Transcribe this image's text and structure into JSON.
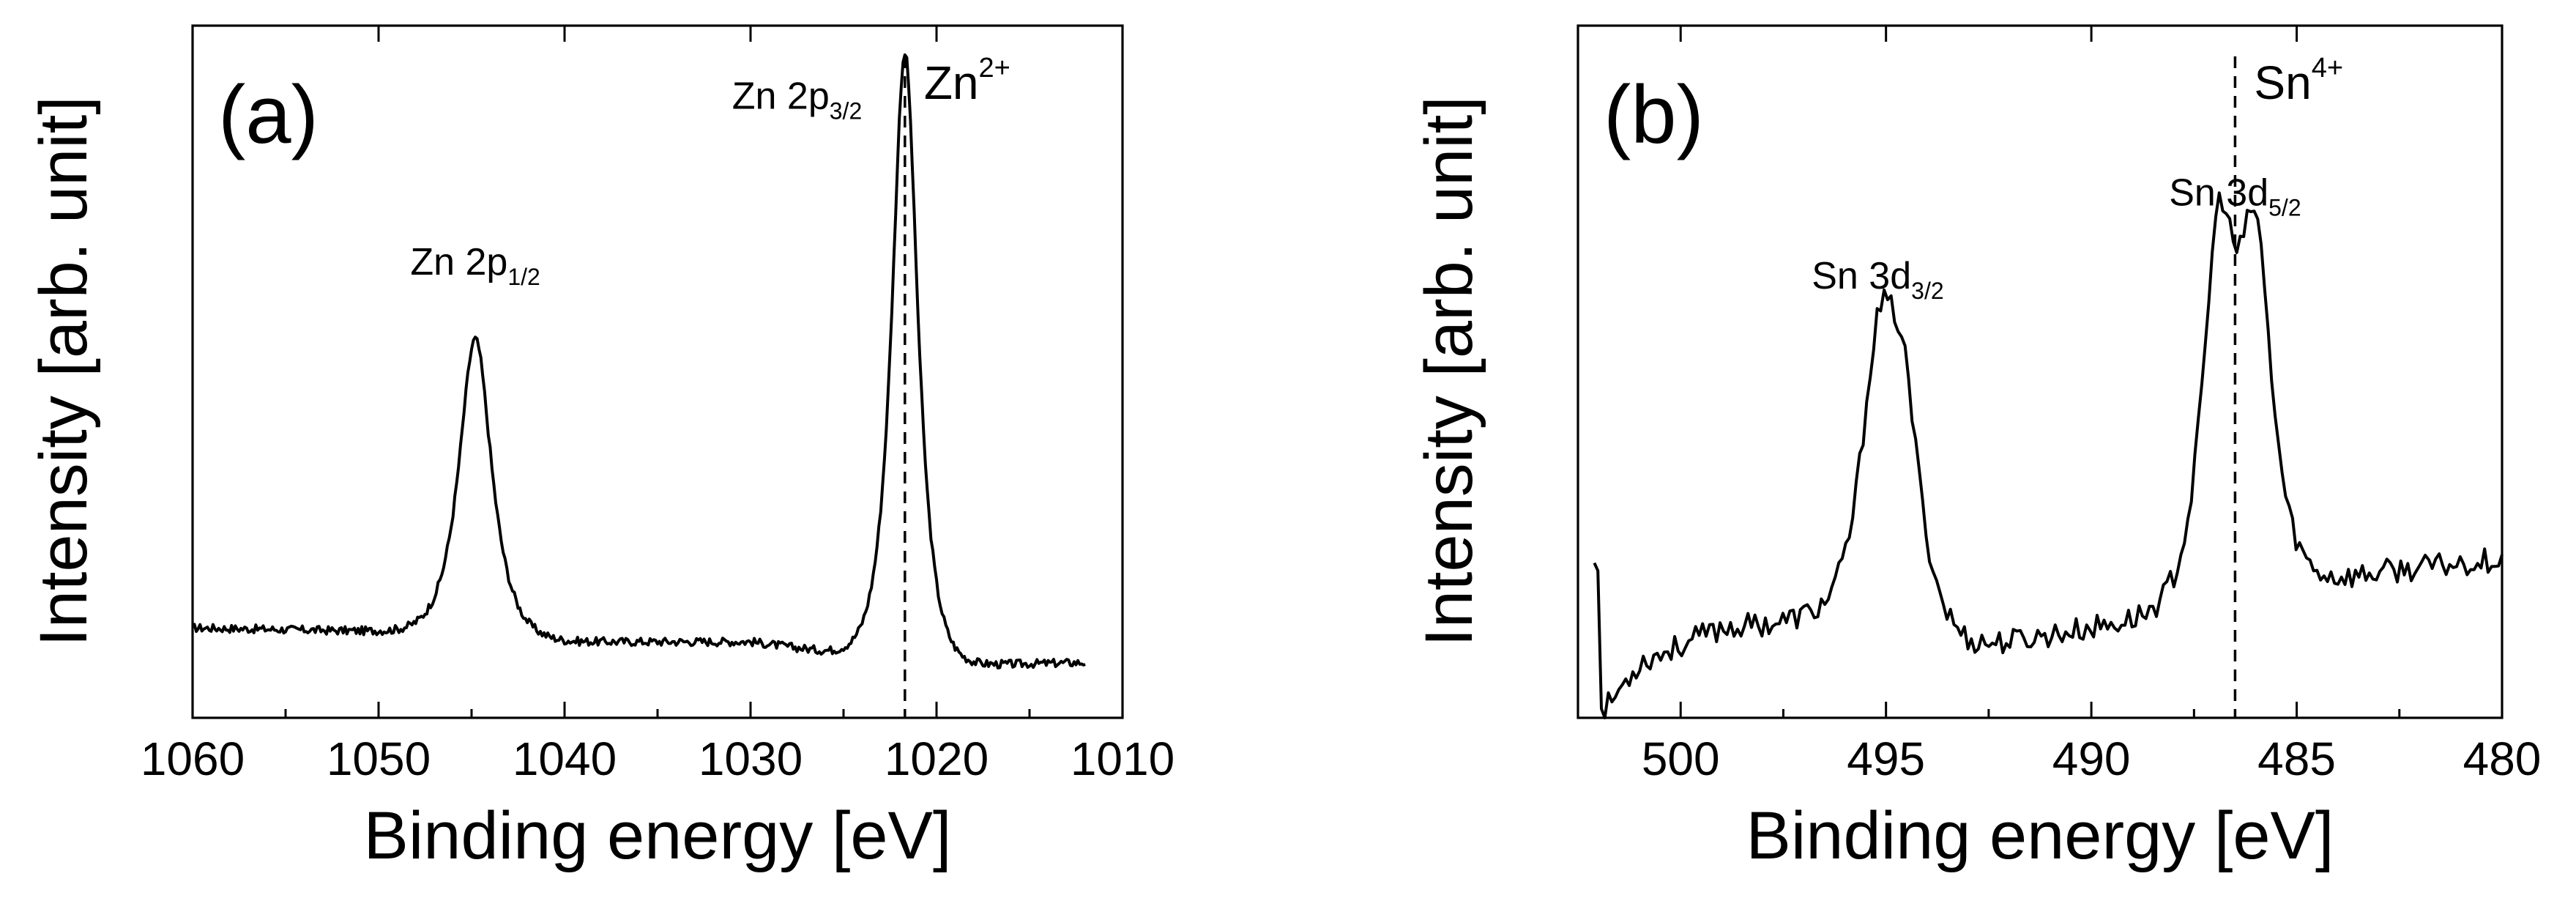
{
  "chart_data": [
    {
      "type": "line",
      "panel": "(a)",
      "xlabel": "Binding energy [eV]",
      "ylabel": "Intensity [arb. unit]",
      "xlim": [
        1060,
        1010
      ],
      "x_reversed": true,
      "ylim": [
        0,
        1
      ],
      "y_ticks_shown": false,
      "xticks": [
        1060,
        1050,
        1040,
        1030,
        1020,
        1010
      ],
      "xtick_labels": [
        "1060",
        "1050",
        "1040",
        "1030",
        "1020",
        "1010"
      ],
      "baseline": [
        [
          1060,
          0.13
        ],
        [
          1050,
          0.125
        ],
        [
          1040,
          0.11
        ],
        [
          1030,
          0.11
        ],
        [
          1020,
          0.075
        ],
        [
          1012,
          0.08
        ]
      ],
      "peaks": [
        {
          "center": 1044.8,
          "height": 0.43,
          "width": 1.2
        },
        {
          "center": 1021.7,
          "height": 0.88,
          "width": 0.95
        }
      ],
      "noise": 0.006,
      "reference_line": {
        "x": 1021.7,
        "label": "Zn",
        "superscript": "2+"
      },
      "annotations": [
        {
          "text": "Zn 2p",
          "subscript": "1/2",
          "x": 1044.8,
          "y": 0.64
        },
        {
          "text": "Zn 2p",
          "subscript": "3/2",
          "x": 1027.5,
          "y": 0.88
        }
      ]
    },
    {
      "type": "line",
      "panel": "(b)",
      "xlabel": "Binding energy [eV]",
      "ylabel": "Intensity [arb. unit]",
      "xlim": [
        502.5,
        480
      ],
      "x_reversed": true,
      "ylim": [
        0,
        1
      ],
      "y_ticks_shown": false,
      "xticks": [
        500,
        495,
        490,
        485,
        480
      ],
      "xtick_labels": [
        "500",
        "495",
        "490",
        "485",
        "480"
      ],
      "baseline": [
        [
          502,
          0.0
        ],
        [
          501,
          0.08
        ],
        [
          499,
          0.13
        ],
        [
          497,
          0.14
        ],
        [
          493,
          0.1
        ],
        [
          490,
          0.13
        ],
        [
          488,
          0.15
        ],
        [
          485,
          0.19
        ],
        [
          483,
          0.21
        ],
        [
          480,
          0.23
        ]
      ],
      "peaks": [
        {
          "center": 495.2,
          "height": 0.34,
          "width": 0.6
        },
        {
          "center": 494.6,
          "height": 0.29,
          "width": 0.6
        },
        {
          "center": 486.9,
          "height": 0.5,
          "width": 0.55
        },
        {
          "center": 486.0,
          "height": 0.47,
          "width": 0.55
        }
      ],
      "noise": 0.018,
      "reference_line": {
        "x": 486.5,
        "label": "Sn",
        "superscript": "4+"
      },
      "annotations": [
        {
          "text": "Sn 3d",
          "subscript": "3/2",
          "x": 495.2,
          "y": 0.62
        },
        {
          "text": "Sn 3d",
          "subscript": "5/2",
          "x": 486.5,
          "y": 0.74
        }
      ]
    }
  ]
}
